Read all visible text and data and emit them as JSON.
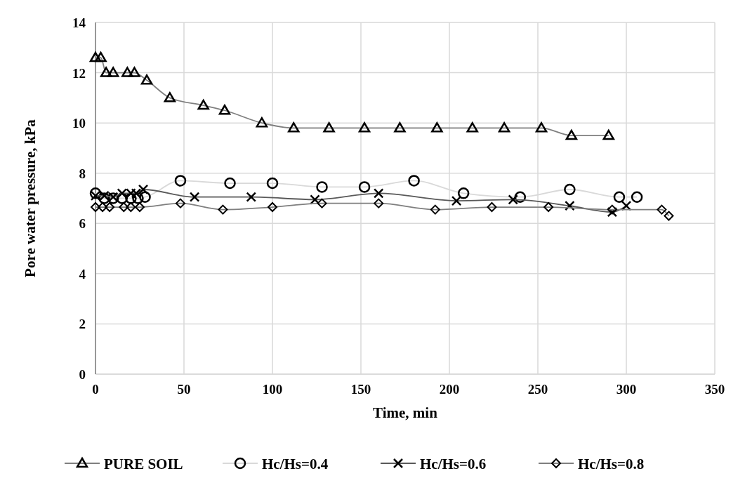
{
  "chart_data": {
    "type": "line",
    "xlabel": "Time, min",
    "ylabel": "Pore water pressure, kPa",
    "xlim": [
      0,
      350
    ],
    "xticks": [
      0,
      50,
      100,
      150,
      200,
      250,
      300,
      350
    ],
    "ylim": [
      0,
      14
    ],
    "yticks": [
      0,
      2,
      4,
      6,
      8,
      10,
      12,
      14
    ],
    "grid": true,
    "legend": "bottom",
    "line_style": "solid",
    "series": [
      {
        "name": "PURE SOIL",
        "color": "#7f7f7f",
        "marker": "triangle",
        "x": [
          0,
          3,
          6,
          10,
          18,
          22,
          29,
          42,
          61,
          73,
          94,
          112,
          132,
          152,
          172,
          193,
          213,
          231,
          252,
          269,
          290
        ],
        "values": [
          12.6,
          12.6,
          12,
          12,
          12,
          12,
          11.7,
          11,
          10.7,
          10.5,
          10,
          9.8,
          9.8,
          9.8,
          9.8,
          9.8,
          9.8,
          9.8,
          9.8,
          9.5,
          9.5
        ]
      },
      {
        "name": "Hc/Hs=0.4",
        "color": "#d9d9d9",
        "marker": "circle",
        "x": [
          0,
          5,
          10,
          15,
          20,
          24,
          28,
          48,
          76,
          100,
          128,
          152,
          180,
          208,
          240,
          268,
          296,
          306
        ],
        "values": [
          7.2,
          7,
          7,
          7,
          7,
          7,
          7.05,
          7.7,
          7.6,
          7.6,
          7.45,
          7.45,
          7.7,
          7.2,
          7.05,
          7.35,
          7.05,
          7.05
        ]
      },
      {
        "name": "Hc/Hs=0.6",
        "color": "#595959",
        "marker": "cross",
        "x": [
          0,
          5,
          10,
          15,
          20,
          23,
          27,
          56,
          88,
          124,
          160,
          204,
          236,
          268,
          292,
          300
        ],
        "values": [
          7.1,
          7.1,
          7.05,
          7.2,
          7.2,
          7.2,
          7.35,
          7.05,
          7.05,
          6.95,
          7.2,
          6.9,
          6.95,
          6.7,
          6.45,
          6.7
        ]
      },
      {
        "name": "Hc/Hs=0.8",
        "color": "#7f7f7f",
        "marker": "diamond",
        "x": [
          0,
          4,
          8,
          16,
          20,
          25,
          48,
          72,
          100,
          128,
          160,
          192,
          224,
          256,
          292,
          320,
          324
        ],
        "values": [
          6.65,
          6.65,
          6.65,
          6.65,
          6.65,
          6.65,
          6.8,
          6.55,
          6.65,
          6.8,
          6.8,
          6.55,
          6.65,
          6.65,
          6.55,
          6.55,
          6.3
        ]
      }
    ]
  }
}
